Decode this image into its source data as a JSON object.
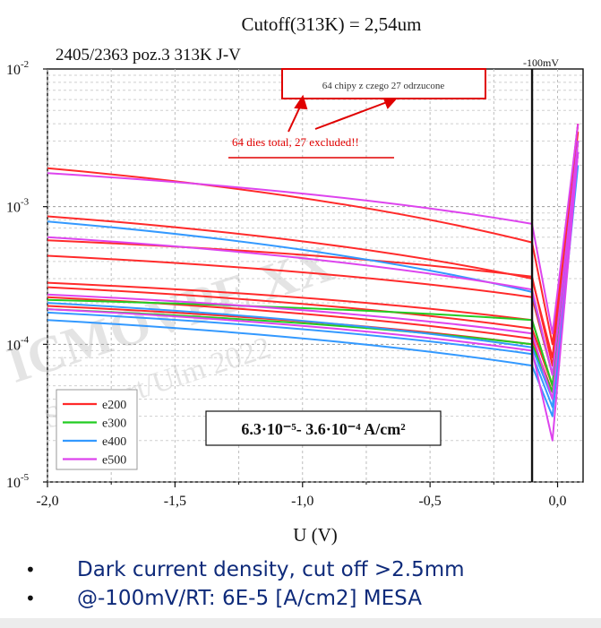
{
  "chart_data": {
    "type": "line",
    "title": "Cutoff(313K) = 2,54um",
    "subtitle": "2405/2363 poz.3  313K J-V",
    "xlabel": "U (V)",
    "ylabel": "",
    "xlim": [
      -2.0,
      0.1
    ],
    "ylim": [
      1e-05,
      0.01
    ],
    "yscale": "log",
    "x_ticks": [
      "-2,0",
      "-1,5",
      "-1,0",
      "-0,5",
      "0,0"
    ],
    "vline_label": "-100mV",
    "vline_x": -0.1,
    "inset_note": "64 chipy z czego 27 odrzucone",
    "annotation": "64 dies total, 27 excluded!!",
    "range_label": "6.3·10⁻⁵- 3.6·10⁻⁴ A/cm²",
    "legend_position": "bottom-left",
    "colors": {
      "e200": "#ff2a2a",
      "e300": "#22cc22",
      "e400": "#3399ff",
      "e500": "#dd44ee"
    },
    "series": [
      {
        "name": "e200",
        "points": [
          [
            -2.0,
            0.0019
          ],
          [
            -0.1,
            0.00055
          ],
          [
            -0.02,
            0.0001
          ],
          [
            0.08,
            0.004
          ]
        ]
      },
      {
        "name": "e200",
        "points": [
          [
            -2.0,
            0.00085
          ],
          [
            -0.1,
            0.0003
          ],
          [
            -0.02,
            8e-05
          ],
          [
            0.08,
            0.004
          ]
        ]
      },
      {
        "name": "e200",
        "points": [
          [
            -2.0,
            0.00057
          ],
          [
            -0.1,
            0.00031
          ],
          [
            -0.02,
            7e-05
          ],
          [
            0.08,
            0.0035
          ]
        ]
      },
      {
        "name": "e200",
        "points": [
          [
            -2.0,
            0.00044
          ],
          [
            -0.1,
            0.00022
          ],
          [
            -0.02,
            6e-05
          ],
          [
            0.08,
            0.003
          ]
        ]
      },
      {
        "name": "e200",
        "points": [
          [
            -2.0,
            0.00028
          ],
          [
            -0.1,
            0.00015
          ],
          [
            -0.02,
            5e-05
          ],
          [
            0.08,
            0.003
          ]
        ]
      },
      {
        "name": "e200",
        "points": [
          [
            -2.0,
            0.00026
          ],
          [
            -0.1,
            0.00013
          ],
          [
            -0.02,
            5e-05
          ],
          [
            0.08,
            0.003
          ]
        ]
      },
      {
        "name": "e200",
        "points": [
          [
            -2.0,
            0.00022
          ],
          [
            -0.1,
            0.00011
          ],
          [
            -0.02,
            4.5e-05
          ],
          [
            0.08,
            0.0025
          ]
        ]
      },
      {
        "name": "e200",
        "points": [
          [
            -2.0,
            0.00019
          ],
          [
            -0.1,
            0.0001
          ],
          [
            -0.02,
            4.5e-05
          ],
          [
            0.08,
            0.0025
          ]
        ]
      },
      {
        "name": "e300",
        "points": [
          [
            -2.0,
            0.00021
          ],
          [
            -0.1,
            0.00015
          ],
          [
            -0.02,
            5e-05
          ],
          [
            0.08,
            0.0025
          ]
        ]
      },
      {
        "name": "e300",
        "points": [
          [
            -2.0,
            0.00018
          ],
          [
            -0.1,
            0.0001
          ],
          [
            -0.02,
            4.5e-05
          ],
          [
            0.08,
            0.0025
          ]
        ]
      },
      {
        "name": "e400",
        "points": [
          [
            -2.0,
            0.00078
          ],
          [
            -0.1,
            0.00024
          ],
          [
            -0.02,
            6e-05
          ],
          [
            0.08,
            0.003
          ]
        ]
      },
      {
        "name": "e400",
        "points": [
          [
            -2.0,
            0.0002
          ],
          [
            -0.1,
            9.5e-05
          ],
          [
            -0.02,
            4e-05
          ],
          [
            0.08,
            0.0025
          ]
        ]
      },
      {
        "name": "e400",
        "points": [
          [
            -2.0,
            0.00017
          ],
          [
            -0.1,
            8.5e-05
          ],
          [
            -0.02,
            3.5e-05
          ],
          [
            0.08,
            0.0025
          ]
        ]
      },
      {
        "name": "e400",
        "points": [
          [
            -2.0,
            0.00015
          ],
          [
            -0.1,
            7e-05
          ],
          [
            -0.02,
            3e-05
          ],
          [
            0.08,
            0.002
          ]
        ]
      },
      {
        "name": "e500",
        "points": [
          [
            -2.0,
            0.00175
          ],
          [
            -0.1,
            0.00075
          ],
          [
            -0.02,
            0.00012
          ],
          [
            0.08,
            0.004
          ]
        ]
      },
      {
        "name": "e500",
        "points": [
          [
            -2.0,
            0.0006
          ],
          [
            -0.1,
            0.00025
          ],
          [
            -0.02,
            6e-05
          ],
          [
            0.08,
            0.003
          ]
        ]
      },
      {
        "name": "e500",
        "points": [
          [
            -2.0,
            0.00023
          ],
          [
            -0.1,
            0.00012
          ],
          [
            -0.02,
            4e-05
          ],
          [
            0.08,
            0.0025
          ]
        ]
      },
      {
        "name": "e500",
        "points": [
          [
            -2.0,
            0.00018
          ],
          [
            -0.1,
            9e-05
          ],
          [
            -0.02,
            2e-05
          ],
          [
            0.08,
            0.0025
          ]
        ]
      }
    ]
  },
  "bullets": [
    "Dark current density, cut off  >2.5mm",
    "@-100mV/RT: 6E-5 [A/cm2] MESA"
  ]
}
